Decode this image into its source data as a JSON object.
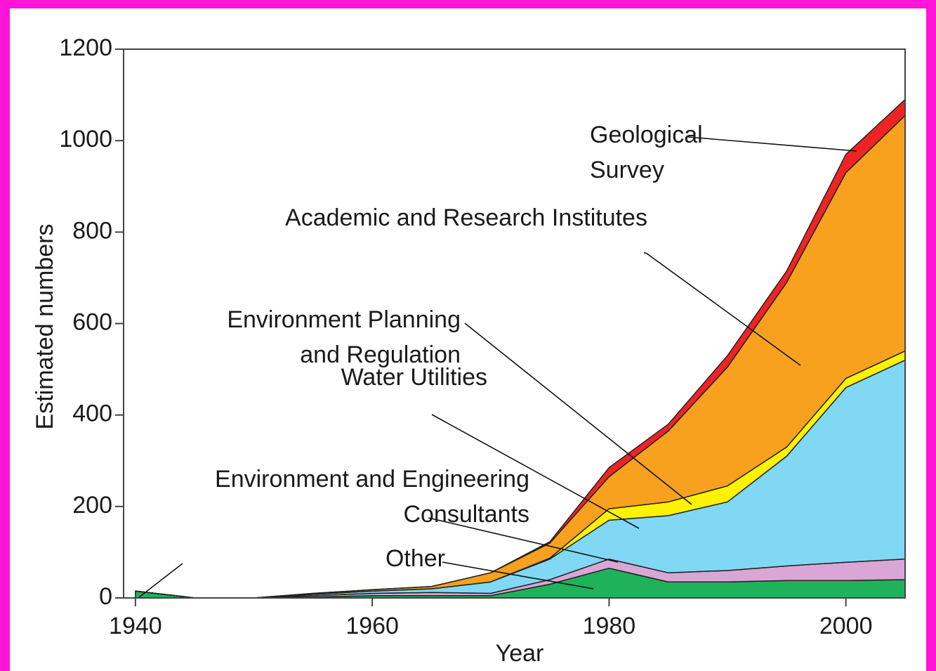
{
  "chart_data": {
    "type": "stacked_area",
    "x_label": "Year",
    "y_label": "Estimated numbers",
    "x": [
      1940,
      1945,
      1950,
      1955,
      1960,
      1965,
      1970,
      1975,
      1980,
      1985,
      1990,
      1995,
      2000,
      2005
    ],
    "series": [
      {
        "name": "Geological Survey",
        "color": "#1fb25a",
        "values": [
          15,
          0,
          0,
          2,
          5,
          5,
          5,
          30,
          65,
          35,
          35,
          38,
          38,
          40
        ]
      },
      {
        "name": "Academic and Research Institutes",
        "color": "#d9a6d6",
        "values": [
          0,
          0,
          0,
          3,
          5,
          7,
          5,
          10,
          20,
          20,
          25,
          32,
          40,
          45
        ]
      },
      {
        "name": "Environment Planning and Regulation",
        "color": "#80d8f5",
        "values": [
          0,
          0,
          0,
          3,
          5,
          8,
          25,
          45,
          85,
          125,
          150,
          240,
          382,
          435
        ]
      },
      {
        "name": "Water Utilities",
        "color": "#fff200",
        "values": [
          0,
          0,
          0,
          0,
          0,
          0,
          0,
          2,
          25,
          30,
          35,
          20,
          20,
          20
        ]
      },
      {
        "name": "Environment and Engineering Consultants",
        "color": "#f7a11f",
        "values": [
          0,
          0,
          0,
          2,
          3,
          5,
          20,
          33,
          70,
          155,
          260,
          360,
          450,
          515
        ]
      },
      {
        "name": "Other",
        "color": "#ee2424",
        "values": [
          0,
          0,
          0,
          0,
          0,
          0,
          0,
          3,
          20,
          15,
          25,
          25,
          40,
          35
        ]
      }
    ],
    "xlim": [
      1939,
      2005
    ],
    "ylim": [
      0,
      1200
    ],
    "xticks": [
      1940,
      1960,
      1980,
      2000
    ],
    "yticks": [
      0,
      200,
      400,
      600,
      800,
      1000,
      1200
    ]
  }
}
